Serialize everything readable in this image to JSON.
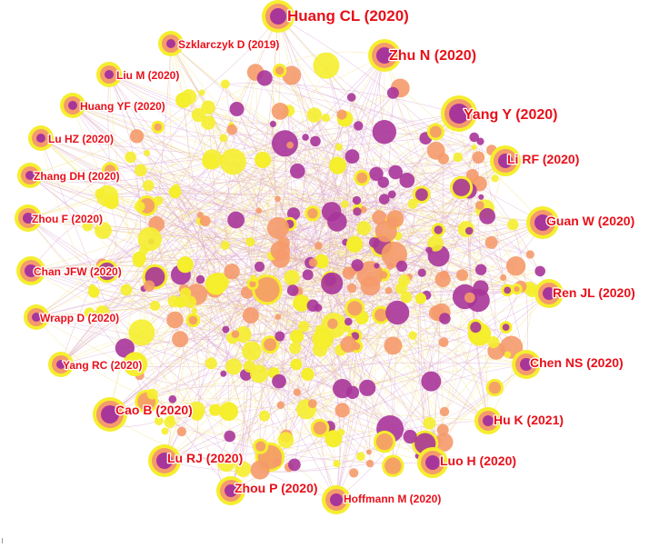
{
  "colors": {
    "yellow": "#f5ee2e",
    "orange": "#f59a6c",
    "purple": "#a8359a",
    "label": "#e8101a",
    "edge_pink": "#d9a0cf",
    "edge_yellow": "#f3e27a"
  },
  "labels": [
    {
      "id": "huang-cl",
      "text": "Huang CL (2020)",
      "size": "xl"
    },
    {
      "id": "zhu-n",
      "text": "Zhu N (2020)",
      "size": "lg"
    },
    {
      "id": "yang-y",
      "text": "Yang Y (2020)",
      "size": "lg"
    },
    {
      "id": "szklarczyk-d",
      "text": "Szklarczyk D (2019)",
      "size": "sm"
    },
    {
      "id": "liu-m",
      "text": "Liu M (2020)",
      "size": "sm"
    },
    {
      "id": "huang-yf",
      "text": "Huang YF (2020)",
      "size": "sm"
    },
    {
      "id": "lu-hz",
      "text": "Lu HZ (2020)",
      "size": "sm"
    },
    {
      "id": "zhang-dh",
      "text": "Zhang DH (2020)",
      "size": "sm"
    },
    {
      "id": "zhou-f",
      "text": "Zhou F (2020)",
      "size": "sm"
    },
    {
      "id": "chan-jfw",
      "text": "Chan JFW (2020)",
      "size": "sm"
    },
    {
      "id": "wrapp-d",
      "text": "Wrapp D (2020)",
      "size": "sm"
    },
    {
      "id": "yang-rc",
      "text": "Yang RC (2020)",
      "size": "sm"
    },
    {
      "id": "cao-b",
      "text": "Cao B (2020)",
      "size": "md"
    },
    {
      "id": "lu-rj",
      "text": "Lu RJ (2020)",
      "size": "md"
    },
    {
      "id": "zhou-p",
      "text": "Zhou P (2020)",
      "size": "md"
    },
    {
      "id": "hoffmann-m",
      "text": "Hoffmann M (2020)",
      "size": "sm"
    },
    {
      "id": "luo-h",
      "text": "Luo H (2020)",
      "size": "md"
    },
    {
      "id": "hu-k",
      "text": "Hu K (2021)",
      "size": "md"
    },
    {
      "id": "chen-ns",
      "text": "Chen NS (2020)",
      "size": "md"
    },
    {
      "id": "ren-jl",
      "text": "Ren JL (2020)",
      "size": "md"
    },
    {
      "id": "guan-w",
      "text": "Guan W (2020)",
      "size": "md"
    },
    {
      "id": "li-rf",
      "text": "Li RF (2020)",
      "size": "md"
    }
  ]
}
